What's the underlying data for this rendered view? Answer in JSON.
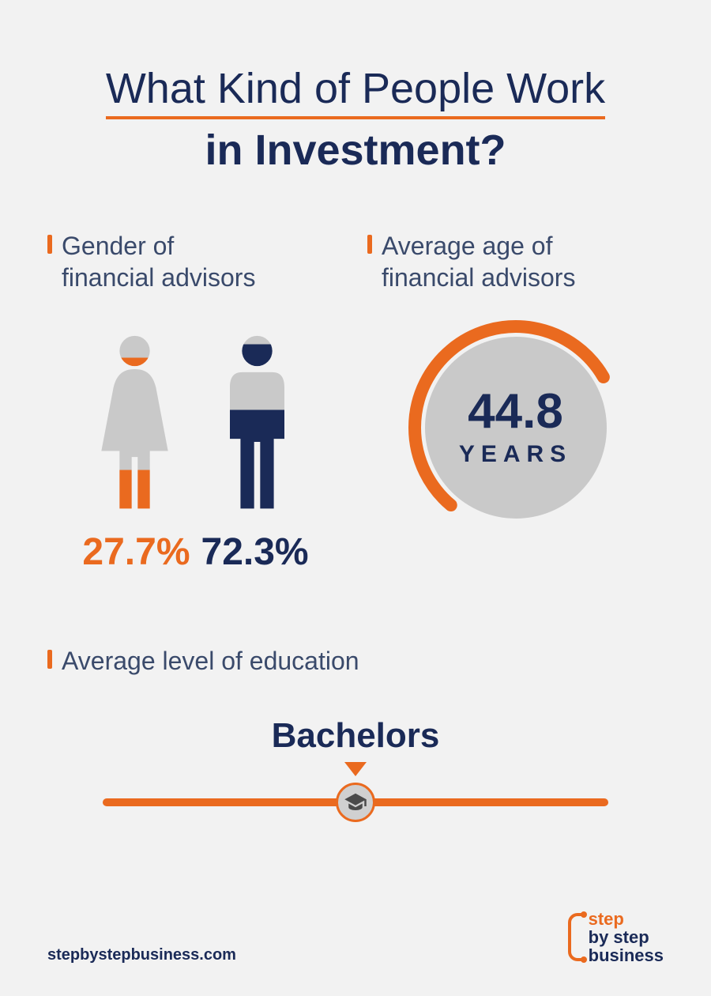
{
  "colors": {
    "navy": "#1a2a57",
    "orange": "#ea6a1f",
    "grey": "#c9c9c9",
    "bg": "#f2f2f2",
    "text_muted": "#3a4a6b"
  },
  "title": {
    "line1": "What Kind of People Work",
    "line2": "in Investment?",
    "fontsize": 54,
    "underline_color": "#ea6a1f"
  },
  "gender": {
    "label_line1": "Gender of",
    "label_line2": "financial advisors",
    "female_pct": "27.7%",
    "male_pct": "72.3%",
    "female_fill_ratio": 0.277,
    "male_fill_ratio": 0.723,
    "female_color": "#ea6a1f",
    "male_color": "#1a2a57",
    "base_color": "#c9c9c9",
    "pct_fontsize": 48
  },
  "age": {
    "label_line1": "Average age of",
    "label_line2": "financial advisors",
    "value": "44.8",
    "unit": "YEARS",
    "circle_bg": "#c9c9c9",
    "arc_color": "#ea6a1f",
    "arc_start_deg": 130,
    "arc_sweep_deg": 200,
    "arc_width": 16,
    "value_fontsize": 62,
    "unit_fontsize": 30
  },
  "education": {
    "label": "Average level of education",
    "value": "Bachelors",
    "line_color": "#ea6a1f",
    "badge_bg": "#d0d0d0",
    "value_fontsize": 44
  },
  "footer": {
    "url": "stepbystepbusiness.com",
    "logo_line1": "step",
    "logo_line2": "by step",
    "logo_line3": "business"
  }
}
